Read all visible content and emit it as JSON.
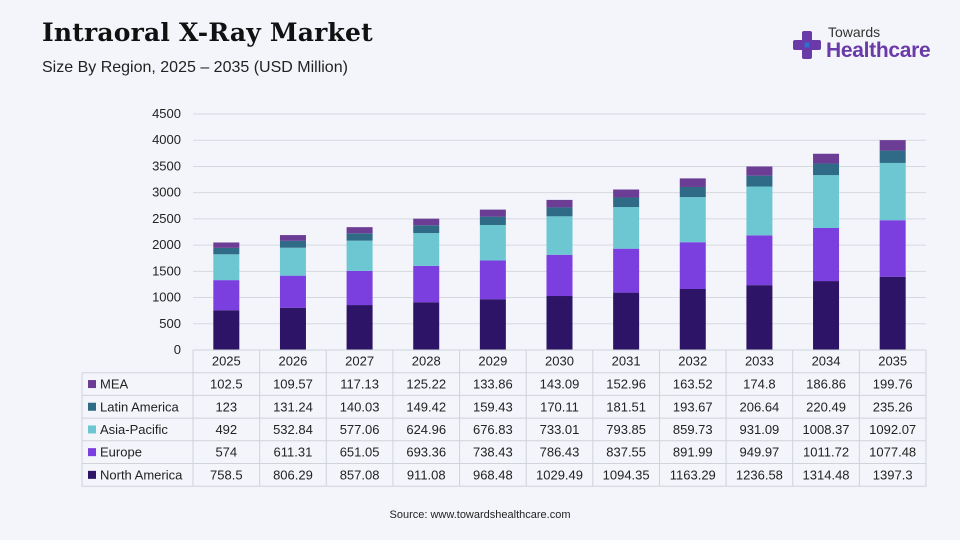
{
  "header": {
    "title": "Intraoral X-Ray Market",
    "subtitle": "Size By Region, 2025 – 2035 (USD Million)"
  },
  "logo": {
    "top": "Towards",
    "main": "Healthcare",
    "colors": {
      "purple": "#6a3aa8",
      "blue": "#2f6fd1"
    }
  },
  "source": "Source: www.towardshealthcare.com",
  "chart_data": {
    "type": "bar",
    "stacked": true,
    "categories": [
      "2025",
      "2026",
      "2027",
      "2028",
      "2029",
      "2030",
      "2031",
      "2032",
      "2033",
      "2034",
      "2035"
    ],
    "ylim": [
      0,
      4500
    ],
    "yticks": [
      0,
      500,
      1000,
      1500,
      2000,
      2500,
      3000,
      3500,
      4000,
      4500
    ],
    "grid": true,
    "legend": "data-table",
    "series": [
      {
        "name": "North America",
        "color": "#2e1466",
        "values": [
          758.5,
          806.29,
          857.08,
          911.08,
          968.48,
          1029.49,
          1094.35,
          1163.29,
          1236.58,
          1314.48,
          1397.3
        ],
        "labels": [
          "758.5",
          "806.29",
          "857.08",
          "911.08",
          "968.48",
          "1029.49",
          "1094.35",
          "1163.29",
          "1236.58",
          "1314.48",
          "1397.3"
        ]
      },
      {
        "name": "Europe",
        "color": "#7b3fe0",
        "values": [
          574,
          611.31,
          651.05,
          693.36,
          738.43,
          786.43,
          837.55,
          891.99,
          949.97,
          1011.72,
          1077.48
        ],
        "labels": [
          "574",
          "611.31",
          "651.05",
          "693.36",
          "738.43",
          "786.43",
          "837.55",
          "891.99",
          "949.97",
          "1011.72",
          "1077.48"
        ]
      },
      {
        "name": "Asia-Pacific",
        "color": "#6cc7d3",
        "values": [
          492,
          532.84,
          577.06,
          624.96,
          676.83,
          733.01,
          793.85,
          859.73,
          931.09,
          1008.37,
          1092.07
        ],
        "labels": [
          "492",
          "532.84",
          "577.06",
          "624.96",
          "676.83",
          "733.01",
          "793.85",
          "859.73",
          "931.09",
          "1008.37",
          "1092.07"
        ]
      },
      {
        "name": "Latin America",
        "color": "#2f6a86",
        "values": [
          123,
          131.24,
          140.03,
          149.42,
          159.43,
          170.11,
          181.51,
          193.67,
          206.64,
          220.49,
          235.26
        ],
        "labels": [
          "123",
          "131.24",
          "140.03",
          "149.42",
          "159.43",
          "170.11",
          "181.51",
          "193.67",
          "206.64",
          "220.49",
          "235.26"
        ]
      },
      {
        "name": "MEA",
        "color": "#6b3d94",
        "values": [
          102.5,
          109.57,
          117.13,
          125.22,
          133.86,
          143.09,
          152.96,
          163.52,
          174.8,
          186.86,
          199.76
        ],
        "labels": [
          "102.5",
          "109.57",
          "117.13",
          "125.22",
          "133.86",
          "143.09",
          "152.96",
          "163.52",
          "174.8",
          "186.86",
          "199.76"
        ]
      }
    ]
  }
}
